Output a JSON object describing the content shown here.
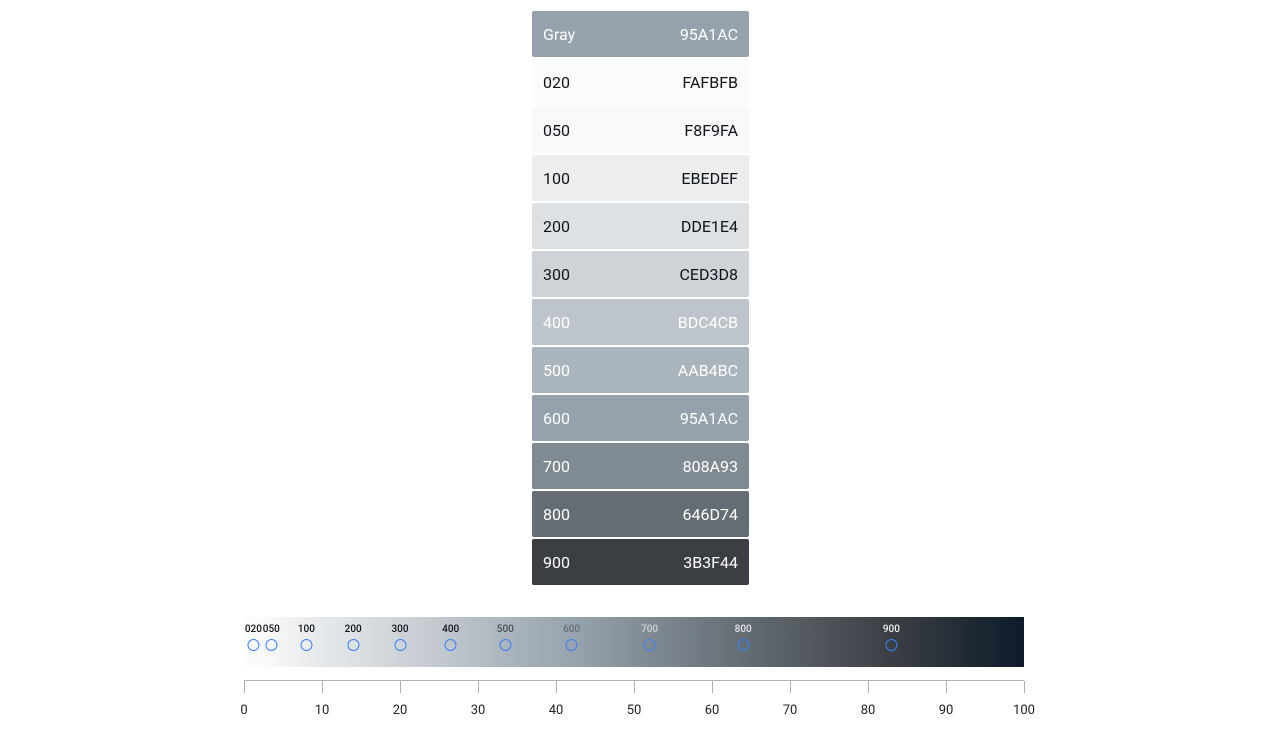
{
  "palette": {
    "name": "Gray",
    "header_hex": "95A1AC",
    "header_bg": "#95A1AC",
    "header_text": "#ffffff",
    "swatches": [
      {
        "shade": "020",
        "hex": "FAFBFB",
        "bg": "#FAFBFB",
        "text": "#111418"
      },
      {
        "shade": "050",
        "hex": "F8F9FA",
        "bg": "#F8F9FA",
        "text": "#111418"
      },
      {
        "shade": "100",
        "hex": "EBEDEF",
        "bg": "#EBEDEF",
        "text": "#111418"
      },
      {
        "shade": "200",
        "hex": "DDE1E4",
        "bg": "#DDE1E4",
        "text": "#111418"
      },
      {
        "shade": "300",
        "hex": "CED3D8",
        "bg": "#CED3D8",
        "text": "#111418"
      },
      {
        "shade": "400",
        "hex": "BDC4CB",
        "bg": "#BDC4CB",
        "text": "#ffffff"
      },
      {
        "shade": "500",
        "hex": "AAB4BC",
        "bg": "#AAB4BC",
        "text": "#ffffff"
      },
      {
        "shade": "600",
        "hex": "95A1AC",
        "bg": "#95A1AC",
        "text": "#ffffff"
      },
      {
        "shade": "700",
        "hex": "808A93",
        "bg": "#808A93",
        "text": "#ffffff"
      },
      {
        "shade": "800",
        "hex": "646D74",
        "bg": "#646D74",
        "text": "#ffffff"
      },
      {
        "shade": "900",
        "hex": "3B3F44",
        "bg": "#3B3F44",
        "text": "#ffffff"
      }
    ]
  },
  "scale": {
    "gradient_css": "linear-gradient(to right, #FAFBFB 0%, #F8F9FA 3%, #EBEDEF 8%, #DDE1E4 14%, #CED3D8 20%, #BDC4CB 27%, #AAB4BC 34%, #95A1AC 43%, #808A93 52%, #646D74 64%, #3B3F44 83%, #0D1B2A 100%)",
    "marker_circle_color": "#3b82f6",
    "markers": [
      {
        "label": "020",
        "pos_pct": 1.2,
        "label_color": "#111418"
      },
      {
        "label": "050",
        "pos_pct": 3.5,
        "label_color": "#111418"
      },
      {
        "label": "100",
        "pos_pct": 8,
        "label_color": "#111418"
      },
      {
        "label": "200",
        "pos_pct": 14,
        "label_color": "#111418"
      },
      {
        "label": "300",
        "pos_pct": 20,
        "label_color": "#111418"
      },
      {
        "label": "400",
        "pos_pct": 26.5,
        "label_color": "#111418"
      },
      {
        "label": "500",
        "pos_pct": 33.5,
        "label_color": "#4a4f55"
      },
      {
        "label": "600",
        "pos_pct": 42,
        "label_color": "#6a6f75"
      },
      {
        "label": "700",
        "pos_pct": 52,
        "label_color": "#cfd2d4"
      },
      {
        "label": "800",
        "pos_pct": 64,
        "label_color": "#e3e5e7"
      },
      {
        "label": "900",
        "pos_pct": 83,
        "label_color": "#f0f1f2"
      }
    ],
    "ruler": {
      "min": 0,
      "max": 100,
      "step": 10,
      "ticks": [
        0,
        10,
        20,
        30,
        40,
        50,
        60,
        70,
        80,
        90,
        100
      ]
    }
  }
}
